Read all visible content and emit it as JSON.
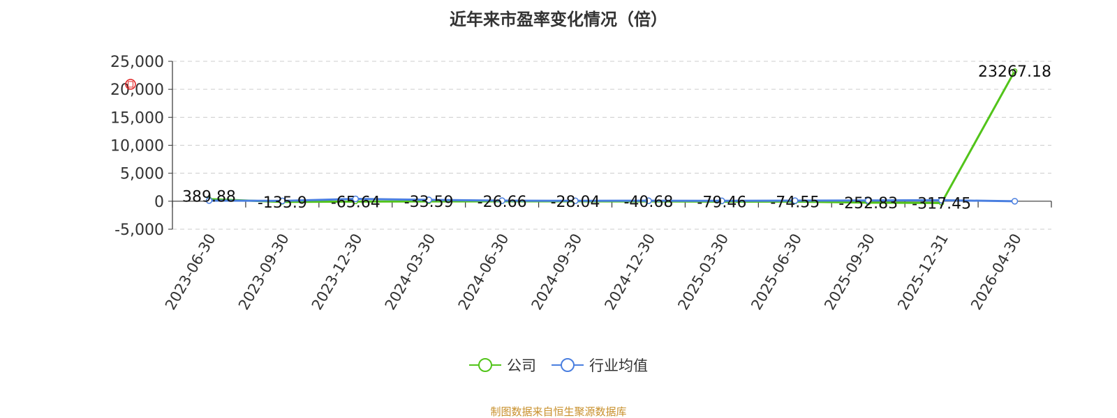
{
  "chart_data": {
    "type": "line",
    "title": "近年来市盈率变化情况（倍）",
    "categories": [
      "2023-06-30",
      "2023-09-30",
      "2023-12-30",
      "2024-03-30",
      "2024-06-30",
      "2024-09-30",
      "2024-12-30",
      "2025-03-30",
      "2025-06-30",
      "2025-09-30",
      "2025-12-31",
      "2026-04-30"
    ],
    "series": [
      {
        "name": "公司",
        "color": "#52c41a",
        "values": [
          389.88,
          -135.9,
          -65.64,
          -33.59,
          -26.66,
          -28.04,
          -40.68,
          -79.46,
          -74.55,
          -252.83,
          -317.45,
          23267.18
        ],
        "labels": [
          "389.88",
          "-135.9",
          "-65.64",
          "-33.59",
          "-26.66",
          "-28.04",
          "-40.68",
          "-79.46",
          "-74.55",
          "-252.83",
          "-317.45",
          "23267.18"
        ]
      },
      {
        "name": "行业均值",
        "color": "#4a7fe0",
        "values": [
          120,
          60,
          420,
          250,
          100,
          80,
          90,
          70,
          110,
          140,
          180,
          0
        ]
      }
    ],
    "yticks": [
      25000,
      20000,
      15000,
      10000,
      5000,
      0,
      -5000
    ],
    "ytick_labels": [
      "25,000",
      "20,000",
      "15,000",
      "10,000",
      "5,000",
      "0",
      "-5,000"
    ],
    "ylim": [
      -5000,
      25000
    ],
    "grid": true,
    "legend_position": "bottom-center"
  },
  "footer": {
    "source": "制图数据来自恒生聚源数据库"
  }
}
